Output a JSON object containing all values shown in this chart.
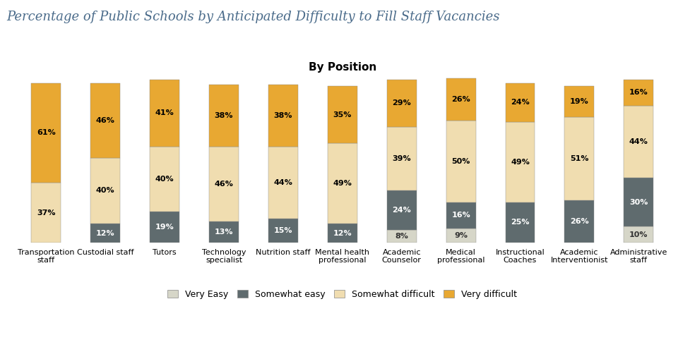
{
  "title": "Percentage of Public Schools by Anticipated Difficulty to Fill Staff Vacancies",
  "subtitle": "By Position",
  "categories": [
    "Transportation\nstaff",
    "Custodial staff",
    "Tutors",
    "Technology\nspecialist",
    "Nutrition staff",
    "Mental health\nprofessional",
    "Academic\nCounselor",
    "Medical\nprofessional",
    "Instructional\nCoaches",
    "Academic\nInterventionist",
    "Administrative\nstaff"
  ],
  "series": {
    "Very Easy": [
      0,
      0,
      0,
      0,
      0,
      0,
      8,
      9,
      0,
      0,
      10
    ],
    "Somewhat easy": [
      0,
      12,
      19,
      13,
      15,
      12,
      24,
      16,
      25,
      26,
      30
    ],
    "Somewhat difficult": [
      37,
      40,
      40,
      46,
      44,
      49,
      39,
      50,
      49,
      51,
      44
    ],
    "Very difficult": [
      61,
      46,
      41,
      38,
      38,
      35,
      29,
      26,
      24,
      19,
      16
    ]
  },
  "labels": {
    "Very Easy": [
      null,
      null,
      null,
      null,
      null,
      null,
      "8%",
      "9%",
      null,
      null,
      "10%"
    ],
    "Somewhat easy": [
      null,
      "12%",
      "19%",
      "13%",
      "15%",
      "12%",
      "24%",
      "16%",
      "25%",
      "26%",
      "30%"
    ],
    "Somewhat difficult": [
      "37%",
      "40%",
      "40%",
      "46%",
      "44%",
      "49%",
      "39%",
      "50%",
      "49%",
      "51%",
      "44%"
    ],
    "Very difficult": [
      "61%",
      "46%",
      "41%",
      "38%",
      "38%",
      "35%",
      "29%",
      "26%",
      "24%",
      "19%",
      "16%"
    ]
  },
  "colors": {
    "Very Easy": "#d6d6c8",
    "Somewhat easy": "#5f6b6e",
    "Somewhat difficult": "#f0ddb0",
    "Very difficult": "#e8a832"
  },
  "legend_order": [
    "Very Easy",
    "Somewhat easy",
    "Somewhat difficult",
    "Very difficult"
  ],
  "title_color": "#4a6b8a",
  "subtitle_fontsize": 11,
  "title_fontsize": 13,
  "bar_width": 0.5
}
